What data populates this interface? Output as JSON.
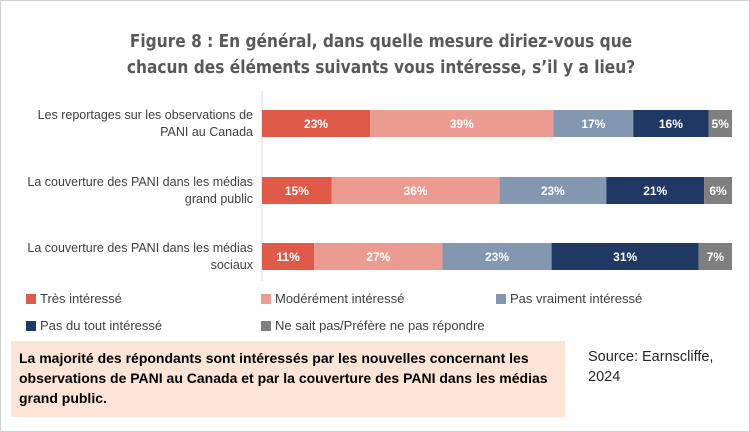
{
  "chart_data": {
    "type": "bar",
    "orientation": "horizontal",
    "stacked": true,
    "title": "Figure 8 : En général, dans quelle mesure diriez-vous que chacun des éléments suivants vous intéresse, s’il y a lieu?",
    "categories": [
      "Les reportages sur les observations de PANI au Canada",
      "La couverture des PANI dans les médias grand public",
      "La couverture des PANI dans les médias sociaux"
    ],
    "series": [
      {
        "name": "Très intéressé",
        "color": "#e05a4a",
        "values": [
          23,
          15,
          11
        ]
      },
      {
        "name": "Modérément intéressé",
        "color": "#ec9b91",
        "values": [
          39,
          36,
          27
        ]
      },
      {
        "name": "Pas vraiment intéressé",
        "color": "#8497b0",
        "values": [
          17,
          23,
          23
        ]
      },
      {
        "name": "Pas du tout intéressé",
        "color": "#1f3864",
        "values": [
          16,
          21,
          31
        ]
      },
      {
        "name": "Ne sait pas/Préfère ne pas répondre",
        "color": "#7f7f7f",
        "values": [
          5,
          6,
          7
        ]
      }
    ],
    "value_suffix": "%",
    "legend_position": "bottom",
    "grid": false
  },
  "note": "La majorité des répondants sont intéressés par les nouvelles concernant les observations de PANI au Canada et par la couverture des PANI dans les médias grand public.",
  "source": "Source: Earnscliffe, 2024"
}
